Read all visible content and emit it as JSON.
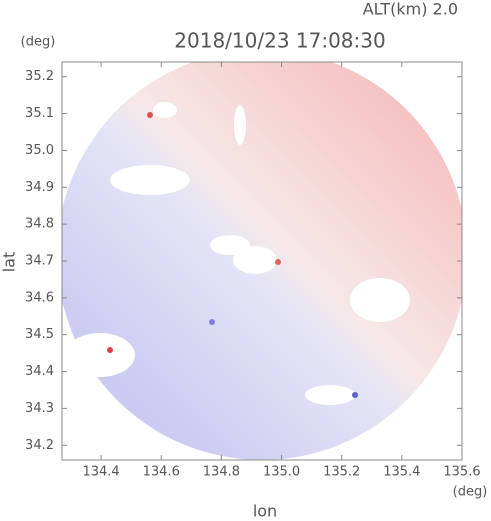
{
  "chart_data": {
    "type": "radar",
    "title": "2018/10/23 17:08:30",
    "subtitle": "ALT(km) 2.0",
    "x_label": "lon",
    "x_unit": "(deg)",
    "y_label": "lat",
    "y_unit": "(deg)",
    "xlim": [
      134.27,
      135.6
    ],
    "xticks": [
      134.4,
      134.6,
      134.8,
      {
        "value": 135,
        "label": "135.0"
      },
      135.2,
      135.4,
      135.6
    ],
    "ylim": [
      34.16,
      35.24
    ],
    "yticks": [
      34.2,
      34.3,
      34.4,
      34.5,
      34.6,
      34.7,
      34.8,
      34.9,
      {
        "value": 35,
        "label": "35.0"
      },
      35.1,
      35.2
    ]
  }
}
